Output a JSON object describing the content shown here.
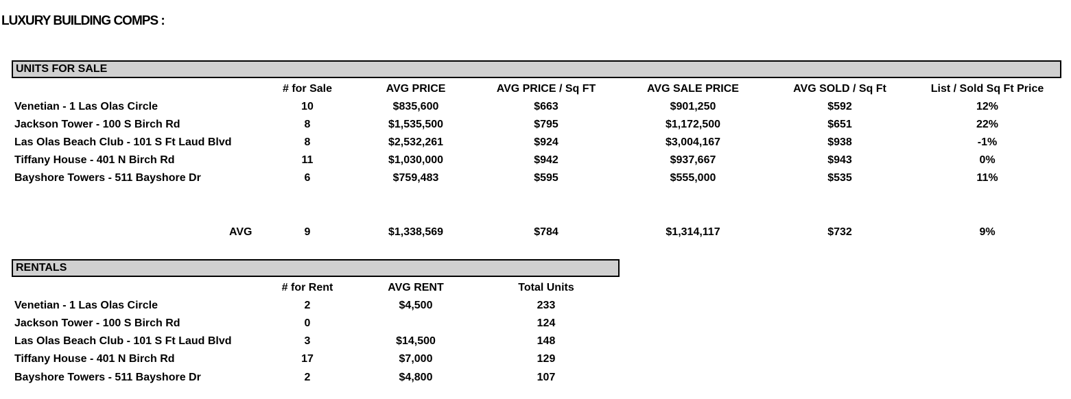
{
  "title": "LUXURY BUILDING COMPS :",
  "sale": {
    "header": "UNITS FOR SALE",
    "columns": [
      "# for Sale",
      "AVG PRICE",
      "AVG PRICE / Sq FT",
      "AVG SALE PRICE",
      "AVG SOLD / Sq Ft",
      "List / Sold Sq Ft Price"
    ],
    "rows": [
      {
        "name": "Venetian - 1 Las Olas Circle",
        "values": [
          "10",
          "$835,600",
          "$663",
          "$901,250",
          "$592",
          "12%"
        ]
      },
      {
        "name": "Jackson Tower - 100 S Birch Rd",
        "values": [
          "8",
          "$1,535,500",
          "$795",
          "$1,172,500",
          "$651",
          "22%"
        ]
      },
      {
        "name": "Las Olas Beach Club - 101 S Ft Laud Blvd",
        "values": [
          "8",
          "$2,532,261",
          "$924",
          "$3,004,167",
          "$938",
          "-1%"
        ]
      },
      {
        "name": "Tiffany House - 401 N Birch Rd",
        "values": [
          "11",
          "$1,030,000",
          "$942",
          "$937,667",
          "$943",
          "0%"
        ]
      },
      {
        "name": "Bayshore Towers - 511 Bayshore Dr",
        "values": [
          "6",
          "$759,483",
          "$595",
          "$555,000",
          "$535",
          "11%"
        ]
      }
    ],
    "avg": {
      "label": "AVG",
      "values": [
        "9",
        "$1,338,569",
        "$784",
        "$1,314,117",
        "$732",
        "9%"
      ]
    }
  },
  "rentals": {
    "header": "RENTALS",
    "columns": [
      "# for Rent",
      "AVG RENT",
      "Total Units"
    ],
    "rows": [
      {
        "name": "Venetian - 1 Las Olas Circle",
        "values": [
          "2",
          "$4,500",
          "233"
        ]
      },
      {
        "name": "Jackson Tower - 100 S Birch Rd",
        "values": [
          "0",
          "",
          "124"
        ]
      },
      {
        "name": "Las Olas Beach Club - 101 S Ft Laud Blvd",
        "values": [
          "3",
          "$14,500",
          "148"
        ]
      },
      {
        "name": "Tiffany House - 401 N Birch Rd",
        "values": [
          "17",
          "$7,000",
          "129"
        ]
      },
      {
        "name": "Bayshore Towers - 511 Bayshore Dr",
        "values": [
          "2",
          "$4,800",
          "107"
        ]
      }
    ]
  }
}
